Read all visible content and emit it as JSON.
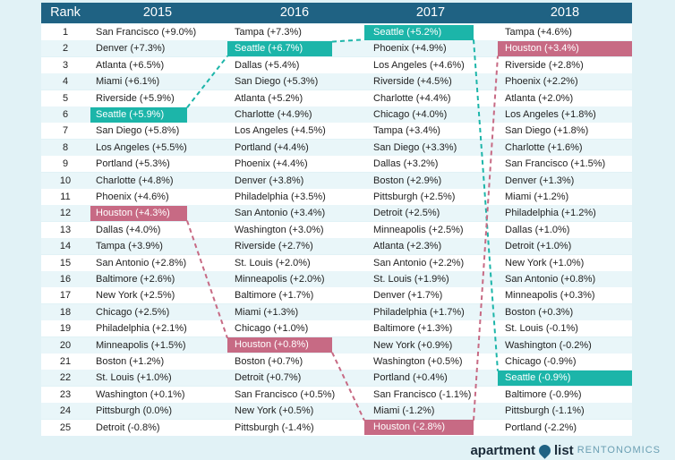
{
  "header": {
    "rank_label": "Rank",
    "years": [
      "2015",
      "2016",
      "2017",
      "2018"
    ]
  },
  "chart_data": {
    "type": "table",
    "title": "",
    "columns": [
      "Rank",
      "2015",
      "2016",
      "2017",
      "2018"
    ],
    "ranks": [
      "1",
      "2",
      "3",
      "4",
      "5",
      "6",
      "7",
      "8",
      "9",
      "10",
      "11",
      "12",
      "13",
      "14",
      "15",
      "16",
      "17",
      "18",
      "19",
      "20",
      "21",
      "22",
      "23",
      "24",
      "25"
    ],
    "years": [
      {
        "year": "2015",
        "entries": [
          "San Francisco (+9.0%)",
          "Denver (+7.3%)",
          "Atlanta (+6.5%)",
          "Miami (+6.1%)",
          "Riverside (+5.9%)",
          "Seattle (+5.9%)",
          "San Diego (+5.8%)",
          "Los Angeles (+5.5%)",
          "Portland (+5.3%)",
          "Charlotte (+4.8%)",
          "Phoenix (+4.6%)",
          "Houston (+4.3%)",
          "Dallas (+4.0%)",
          "Tampa (+3.9%)",
          "San Antonio (+2.8%)",
          "Baltimore (+2.6%)",
          "New York (+2.5%)",
          "Chicago (+2.5%)",
          "Philadelphia (+2.1%)",
          "Minneapolis (+1.5%)",
          "Boston (+1.2%)",
          "St. Louis (+1.0%)",
          "Washington (+0.1%)",
          "Pittsburgh (0.0%)",
          "Detroit (-0.8%)"
        ]
      },
      {
        "year": "2016",
        "entries": [
          "Tampa (+7.3%)",
          "Seattle (+6.7%)",
          "Dallas (+5.4%)",
          "San Diego (+5.3%)",
          "Atlanta (+5.2%)",
          "Charlotte (+4.9%)",
          "Los Angeles (+4.5%)",
          "Portland (+4.4%)",
          "Phoenix (+4.4%)",
          "Denver (+3.8%)",
          "Philadelphia (+3.5%)",
          "San Antonio (+3.4%)",
          "Washington (+3.0%)",
          "Riverside (+2.7%)",
          "St. Louis (+2.0%)",
          "Minneapolis (+2.0%)",
          "Baltimore (+1.7%)",
          "Miami (+1.3%)",
          "Chicago (+1.0%)",
          "Houston (+0.8%)",
          "Boston (+0.7%)",
          "Detroit (+0.7%)",
          "San Francisco (+0.5%)",
          "New York (+0.5%)",
          "Pittsburgh (-1.4%)"
        ]
      },
      {
        "year": "2017",
        "entries": [
          "Seattle (+5.2%)",
          "Phoenix (+4.9%)",
          "Los Angeles (+4.6%)",
          "Riverside (+4.5%)",
          "Charlotte (+4.4%)",
          "Chicago (+4.0%)",
          "Tampa (+3.4%)",
          "San Diego (+3.3%)",
          "Dallas (+3.2%)",
          "Boston (+2.9%)",
          "Pittsburgh (+2.5%)",
          "Detroit (+2.5%)",
          "Minneapolis (+2.5%)",
          "Atlanta (+2.3%)",
          "San Antonio (+2.2%)",
          "St. Louis (+1.9%)",
          "Denver (+1.7%)",
          "Philadelphia (+1.7%)",
          "Baltimore (+1.3%)",
          "New York (+0.9%)",
          "Washington (+0.5%)",
          "Portland (+0.4%)",
          "San Francisco (-1.1%)",
          "Miami (-1.2%)",
          "Houston (-2.8%)"
        ]
      },
      {
        "year": "2018",
        "entries": [
          "Tampa (+4.6%)",
          "Houston (+3.4%)",
          "Riverside (+2.8%)",
          "Phoenix (+2.2%)",
          "Atlanta (+2.0%)",
          "Los Angeles (+1.8%)",
          "San Diego (+1.8%)",
          "Charlotte (+1.6%)",
          "San Francisco (+1.5%)",
          "Denver (+1.3%)",
          "Miami (+1.2%)",
          "Philadelphia (+1.2%)",
          "Dallas (+1.0%)",
          "Detroit (+1.0%)",
          "New York (+1.0%)",
          "San Antonio (+0.8%)",
          "Minneapolis (+0.3%)",
          "Boston (+0.3%)",
          "St. Louis (-0.1%)",
          "Washington (-0.2%)",
          "Chicago (-0.9%)",
          "Seattle (-0.9%)",
          "Baltimore (-0.9%)",
          "Pittsburgh (-1.1%)",
          "Portland (-2.2%)"
        ]
      }
    ],
    "highlights": [
      {
        "city": "Seattle",
        "color": "#1cb5a9",
        "ranks": [
          6,
          2,
          1,
          22
        ]
      },
      {
        "city": "Houston",
        "color": "#c76a84",
        "ranks": [
          12,
          20,
          25,
          2
        ]
      }
    ]
  },
  "colors": {
    "header_bg": "#1f6283",
    "page_bg": "#e1f2f6",
    "row_even": "#e9f6f9",
    "row_odd": "#ffffff",
    "seattle": "#1cb5a9",
    "houston": "#c76a84"
  },
  "logo": {
    "brand_left": "apartment",
    "brand_icon": "map-pin-icon",
    "brand_right": "list",
    "sub": "RENTONOMICS"
  }
}
